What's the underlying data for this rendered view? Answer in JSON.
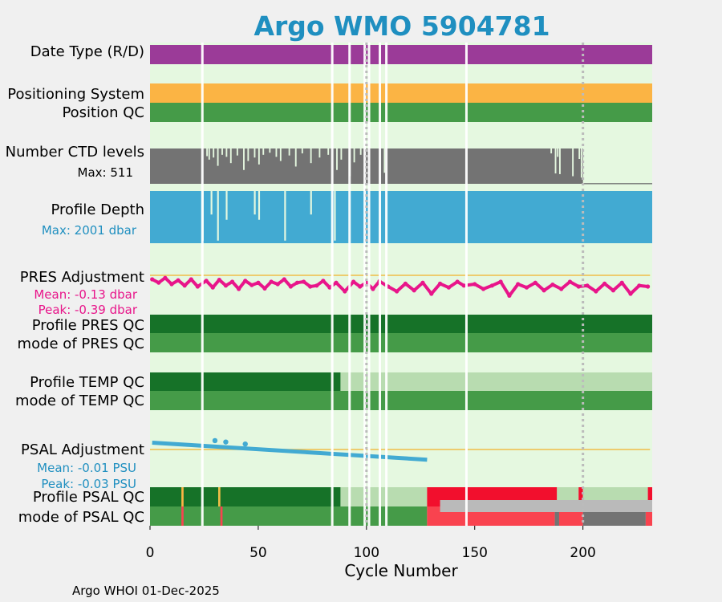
{
  "title": "Argo WMO 5904781",
  "footer": "Argo WHOI 01-Dec-2025",
  "colors": {
    "title": "#1f8fc0",
    "bg_plot": "#e5f8e0",
    "purple": "#9b3b98",
    "orange": "#fbb444",
    "green_med": "#459b48",
    "green_dark": "#167228",
    "green_light": "#b8dcb0",
    "gray_dark": "#737373",
    "gray_light": "#bababa",
    "blue": "#42aad2",
    "pink": "#e8158a",
    "red_bright": "#f20f2d",
    "red_light": "#f9434f",
    "gold": "#f0be48",
    "row_label": "#000000",
    "pres_stat": "#e8158a",
    "psal_stat": "#1f8fc0",
    "depth_stat": "#1f8fc0"
  },
  "rows": {
    "date_type": "Date Type (R/D)",
    "positioning": "Positioning System",
    "position_qc": "Position QC",
    "ctd_levels": "Number CTD levels",
    "ctd_max": "Max: 511",
    "profile_depth": "Profile Depth",
    "depth_max": "Max: 2001 dbar",
    "pres_adj": "PRES Adjustment",
    "pres_mean": "Mean: -0.13 dbar",
    "pres_peak": "Peak: -0.39 dbar",
    "profile_pres_qc": "Profile PRES QC",
    "mode_pres_qc": "mode of PRES QC",
    "profile_temp_qc": "Profile TEMP QC",
    "mode_temp_qc": "mode of TEMP QC",
    "psal_adj": "PSAL Adjustment",
    "psal_mean": "Mean: -0.01 PSU",
    "psal_peak": "Peak: -0.03 PSU",
    "profile_psal_qc": "Profile PSAL QC",
    "mode_psal_qc": "mode of PSAL QC"
  },
  "chart_data": {
    "type": "bar",
    "title": "Argo WMO 5904781",
    "xlabel": "Cycle Number",
    "xlim": [
      0,
      232
    ],
    "xticks": [
      0,
      50,
      100,
      150,
      200
    ],
    "xtick_labels": [
      "0",
      "50",
      "100",
      "150",
      "200"
    ],
    "ref_lines": [
      100,
      200
    ],
    "gap_cycles": [
      24,
      84,
      92,
      99,
      101,
      106,
      109,
      146
    ],
    "ctd_levels": {
      "max": 511,
      "full_until": 200,
      "after_200_value": 10,
      "dips": [
        [
          26,
          400
        ],
        [
          27,
          350
        ],
        [
          29,
          380
        ],
        [
          31,
          260
        ],
        [
          33,
          420
        ],
        [
          35,
          390
        ],
        [
          37,
          300
        ],
        [
          40,
          410
        ],
        [
          43,
          200
        ],
        [
          45,
          330
        ],
        [
          48,
          380
        ],
        [
          50,
          280
        ],
        [
          52,
          420
        ],
        [
          55,
          450
        ],
        [
          58,
          390
        ],
        [
          60,
          330
        ],
        [
          64,
          410
        ],
        [
          67,
          250
        ],
        [
          70,
          440
        ],
        [
          74,
          300
        ],
        [
          78,
          380
        ],
        [
          82,
          420
        ],
        [
          86,
          200
        ],
        [
          88,
          350
        ],
        [
          92,
          110
        ],
        [
          94,
          310
        ],
        [
          97,
          420
        ],
        [
          108,
          160
        ],
        [
          185,
          440
        ],
        [
          187,
          150
        ],
        [
          188,
          390
        ],
        [
          189,
          140
        ],
        [
          195,
          110
        ],
        [
          198,
          360
        ],
        [
          199,
          90
        ],
        [
          231,
          80
        ]
      ]
    },
    "profile_depth": {
      "max": 2001,
      "short_cycles": [
        [
          24,
          0.05
        ],
        [
          28,
          0.55
        ],
        [
          31,
          0.05
        ],
        [
          35,
          0.45
        ],
        [
          48,
          0.55
        ],
        [
          50,
          0.45
        ],
        [
          62,
          0.05
        ],
        [
          74,
          0.55
        ],
        [
          85,
          0.05
        ]
      ]
    },
    "pres_adjustment": {
      "units": "dbar",
      "mean": -0.13,
      "peak": -0.39,
      "points": [
        [
          1,
          -0.05
        ],
        [
          4,
          -0.12
        ],
        [
          7,
          -0.02
        ],
        [
          10,
          -0.15
        ],
        [
          13,
          -0.07
        ],
        [
          16,
          -0.18
        ],
        [
          19,
          -0.05
        ],
        [
          22,
          -0.2
        ],
        [
          26,
          -0.08
        ],
        [
          29,
          -0.22
        ],
        [
          32,
          -0.06
        ],
        [
          35,
          -0.18
        ],
        [
          38,
          -0.1
        ],
        [
          41,
          -0.25
        ],
        [
          44,
          -0.08
        ],
        [
          47,
          -0.17
        ],
        [
          50,
          -0.12
        ],
        [
          53,
          -0.24
        ],
        [
          56,
          -0.1
        ],
        [
          59,
          -0.15
        ],
        [
          62,
          -0.05
        ],
        [
          65,
          -0.2
        ],
        [
          68,
          -0.12
        ],
        [
          71,
          -0.1
        ],
        [
          74,
          -0.2
        ],
        [
          77,
          -0.18
        ],
        [
          80,
          -0.08
        ],
        [
          83,
          -0.22
        ],
        [
          86,
          -0.12
        ],
        [
          90,
          -0.3
        ],
        [
          94,
          -0.1
        ],
        [
          97,
          -0.2
        ],
        [
          100,
          -0.12
        ],
        [
          103,
          -0.25
        ],
        [
          106,
          -0.09
        ],
        [
          110,
          -0.2
        ],
        [
          114,
          -0.3
        ],
        [
          118,
          -0.14
        ],
        [
          122,
          -0.28
        ],
        [
          126,
          -0.12
        ],
        [
          130,
          -0.35
        ],
        [
          134,
          -0.14
        ],
        [
          138,
          -0.22
        ],
        [
          142,
          -0.1
        ],
        [
          145,
          -0.18
        ],
        [
          150,
          -0.15
        ],
        [
          154,
          -0.25
        ],
        [
          158,
          -0.18
        ],
        [
          162,
          -0.1
        ],
        [
          166,
          -0.39
        ],
        [
          170,
          -0.15
        ],
        [
          174,
          -0.22
        ],
        [
          178,
          -0.12
        ],
        [
          182,
          -0.28
        ],
        [
          186,
          -0.16
        ],
        [
          190,
          -0.25
        ],
        [
          194,
          -0.1
        ],
        [
          198,
          -0.2
        ],
        [
          202,
          -0.18
        ],
        [
          206,
          -0.3
        ],
        [
          210,
          -0.14
        ],
        [
          214,
          -0.28
        ],
        [
          218,
          -0.12
        ],
        [
          222,
          -0.35
        ],
        [
          226,
          -0.18
        ],
        [
          230,
          -0.2
        ]
      ]
    },
    "psal_adjustment": {
      "units": "PSU",
      "mean": -0.01,
      "peak": -0.03,
      "x_start": 1,
      "x_end": 128,
      "y_start": 0.01,
      "y_end": -0.015,
      "bumps": [
        [
          30,
          0.013
        ],
        [
          35,
          0.011
        ],
        [
          44,
          0.008
        ]
      ]
    },
    "qc_segments": {
      "date_type": [
        [
          0,
          232,
          "purple"
        ]
      ],
      "positioning": [
        [
          0,
          232,
          "orange"
        ]
      ],
      "position_qc": [
        [
          0,
          232,
          "green_med"
        ]
      ],
      "profile_pres_qc": [
        [
          0,
          232,
          "green_dark"
        ]
      ],
      "mode_pres_qc": [
        [
          0,
          232,
          "green_med"
        ]
      ],
      "profile_temp_qc": [
        [
          0,
          88,
          "green_dark"
        ],
        [
          88,
          232,
          "green_light"
        ]
      ],
      "mode_temp_qc": [
        [
          0,
          232,
          "green_med"
        ]
      ],
      "profile_psal_qc": [
        [
          0,
          88,
          "green_dark"
        ],
        [
          14.5,
          15.5,
          "orange"
        ],
        [
          31.5,
          32.5,
          "gold"
        ],
        [
          88,
          128,
          "green_light"
        ],
        [
          128,
          188,
          "red_bright"
        ],
        [
          188,
          198,
          "green_light"
        ],
        [
          198,
          200,
          "red_bright"
        ],
        [
          200,
          230,
          "green_light"
        ],
        [
          230,
          232,
          "red_bright"
        ]
      ],
      "mode_psal_qc": [
        [
          0,
          128,
          "green_med"
        ],
        [
          14.5,
          15.5,
          "red_light"
        ],
        [
          32.5,
          33.5,
          "red_light"
        ],
        [
          128,
          187,
          "red_light"
        ],
        [
          187,
          189,
          "gray_dark"
        ],
        [
          189,
          200,
          "red_light"
        ],
        [
          200,
          229,
          "gray_dark"
        ],
        [
          229,
          232,
          "red_light"
        ]
      ],
      "psal_overlay": [
        [
          134,
          232,
          "gray_light"
        ]
      ]
    }
  }
}
